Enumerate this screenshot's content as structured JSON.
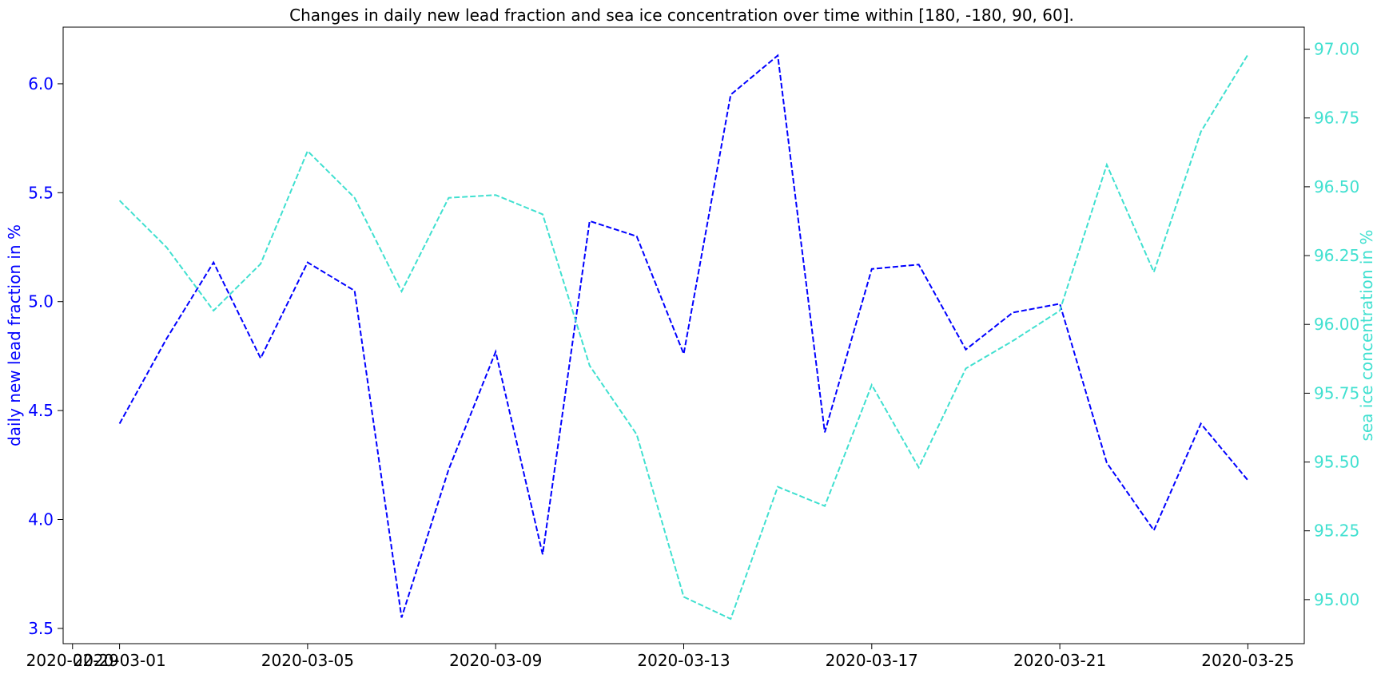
{
  "chart_data": {
    "type": "line",
    "title": "Changes in daily new lead fraction and sea ice concentration over time within [180, -180, 90, 60].",
    "x_ticks": [
      "2020-02-29",
      "2020-03-01",
      "2020-03-05",
      "2020-03-09",
      "2020-03-13",
      "2020-03-17",
      "2020-03-21",
      "2020-03-25"
    ],
    "x": [
      "2020-03-01",
      "2020-03-02",
      "2020-03-03",
      "2020-03-04",
      "2020-03-05",
      "2020-03-06",
      "2020-03-07",
      "2020-03-08",
      "2020-03-09",
      "2020-03-10",
      "2020-03-11",
      "2020-03-12",
      "2020-03-13",
      "2020-03-14",
      "2020-03-15",
      "2020-03-16",
      "2020-03-17",
      "2020-03-18",
      "2020-03-19",
      "2020-03-20",
      "2020-03-21",
      "2020-03-22",
      "2020-03-23",
      "2020-03-24",
      "2020-03-25"
    ],
    "xlim": [
      "2020-02-28T19:12",
      "2020-03-26T04:48"
    ],
    "left_axis": {
      "label": "daily new lead fraction in %",
      "color": "#0000ff",
      "ylim": [
        3.43,
        6.26
      ],
      "ticks": [
        "3.5",
        "4.0",
        "4.5",
        "5.0",
        "5.5",
        "6.0"
      ]
    },
    "right_axis": {
      "label": "sea ice concentration in %",
      "color": "#40e0d0",
      "ylim": [
        94.84,
        97.08
      ],
      "ticks": [
        "95.00",
        "95.25",
        "95.50",
        "95.75",
        "96.00",
        "96.25",
        "96.50",
        "96.75",
        "97.00"
      ]
    },
    "series": [
      {
        "axis": "left",
        "color": "#0000ff",
        "style": "dashed",
        "values": [
          4.44,
          4.83,
          5.18,
          4.74,
          5.18,
          5.05,
          3.55,
          4.23,
          4.77,
          3.84,
          5.37,
          5.3,
          4.76,
          5.95,
          6.13,
          4.4,
          5.15,
          5.17,
          4.78,
          4.95,
          4.99,
          4.26,
          3.95,
          4.44,
          4.18
        ]
      },
      {
        "axis": "right",
        "color": "#40e0d0",
        "style": "dashed",
        "values": [
          96.45,
          96.28,
          96.05,
          96.22,
          96.63,
          96.46,
          96.12,
          96.46,
          96.47,
          96.4,
          95.85,
          95.6,
          95.01,
          94.93,
          95.41,
          95.34,
          95.78,
          95.48,
          95.84,
          95.94,
          96.05,
          96.58,
          96.19,
          96.7,
          96.98
        ]
      }
    ],
    "grid": false,
    "legend": "none"
  }
}
